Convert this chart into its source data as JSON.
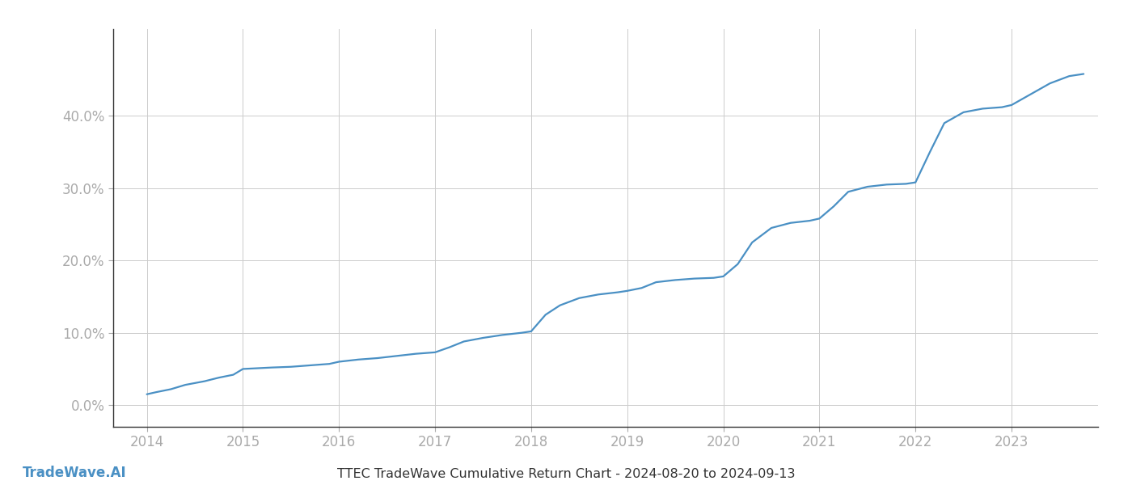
{
  "title": "TTEC TradeWave Cumulative Return Chart - 2024-08-20 to 2024-09-13",
  "watermark": "TradeWave.AI",
  "line_color": "#4a90c4",
  "background_color": "#ffffff",
  "grid_color": "#cccccc",
  "x_values": [
    2014.0,
    2014.1,
    2014.25,
    2014.4,
    2014.6,
    2014.75,
    2014.9,
    2015.0,
    2015.15,
    2015.3,
    2015.5,
    2015.7,
    2015.9,
    2016.0,
    2016.2,
    2016.4,
    2016.6,
    2016.8,
    2017.0,
    2017.15,
    2017.3,
    2017.5,
    2017.7,
    2017.9,
    2018.0,
    2018.15,
    2018.3,
    2018.5,
    2018.7,
    2018.9,
    2019.0,
    2019.15,
    2019.3,
    2019.5,
    2019.7,
    2019.9,
    2020.0,
    2020.15,
    2020.3,
    2020.5,
    2020.7,
    2020.9,
    2021.0,
    2021.15,
    2021.3,
    2021.5,
    2021.7,
    2021.9,
    2022.0,
    2022.15,
    2022.3,
    2022.5,
    2022.7,
    2022.9,
    2023.0,
    2023.2,
    2023.4,
    2023.6,
    2023.75
  ],
  "y_values": [
    1.5,
    1.8,
    2.2,
    2.8,
    3.3,
    3.8,
    4.2,
    5.0,
    5.1,
    5.2,
    5.3,
    5.5,
    5.7,
    6.0,
    6.3,
    6.5,
    6.8,
    7.1,
    7.3,
    8.0,
    8.8,
    9.3,
    9.7,
    10.0,
    10.2,
    12.5,
    13.8,
    14.8,
    15.3,
    15.6,
    15.8,
    16.2,
    17.0,
    17.3,
    17.5,
    17.6,
    17.8,
    19.5,
    22.5,
    24.5,
    25.2,
    25.5,
    25.8,
    27.5,
    29.5,
    30.2,
    30.5,
    30.6,
    30.8,
    35.0,
    39.0,
    40.5,
    41.0,
    41.2,
    41.5,
    43.0,
    44.5,
    45.5,
    45.8
  ],
  "xlim": [
    2013.65,
    2023.9
  ],
  "ylim": [
    -3,
    52
  ],
  "yticks": [
    0,
    10,
    20,
    30,
    40
  ],
  "ytick_labels": [
    "0.0%",
    "10.0%",
    "20.0%",
    "30.0%",
    "40.0%"
  ],
  "xticks": [
    2014,
    2015,
    2016,
    2017,
    2018,
    2019,
    2020,
    2021,
    2022,
    2023
  ],
  "tick_color": "#aaaaaa",
  "axis_color": "#333333",
  "label_fontsize": 12,
  "title_fontsize": 11.5,
  "watermark_fontsize": 12,
  "line_width": 1.6,
  "spine_color": "#333333"
}
